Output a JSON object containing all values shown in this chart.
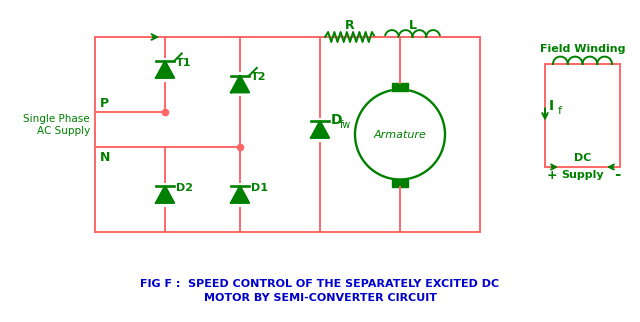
{
  "bg_color": "#ffffff",
  "line_color_red": "#ff6666",
  "line_color_green": "#008000",
  "component_color": "#008000",
  "title_line1": "FIG F :  SPEED CONTROL OF THE SEPARATELY EXCITED DC",
  "title_line2": "MOTOR BY SEMI-CONVERTER CIRCUIT",
  "title_color": "#0000cc",
  "label_P": "P",
  "label_N": "N",
  "label_T1": "T1",
  "label_T2": "T2",
  "label_D1": "D1",
  "label_D2": "D2",
  "label_Dfw": "D",
  "label_Dfw_sub": "fw",
  "label_R": "R",
  "label_L": "L",
  "label_armature": "Armature",
  "label_supply_1": "Single Phase",
  "label_supply_2": "AC Supply",
  "label_field": "Field Winding",
  "label_dc_1": "DC",
  "label_dc_2": "Supply",
  "label_If": "I",
  "label_If_sub": "f"
}
